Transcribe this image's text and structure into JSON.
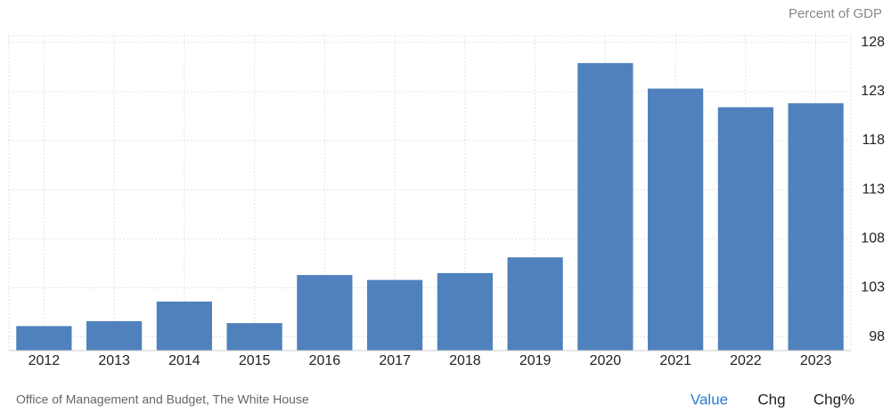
{
  "chart_data": {
    "type": "bar",
    "y_axis_label": "Percent of GDP",
    "categories": [
      "2012",
      "2013",
      "2014",
      "2015",
      "2016",
      "2017",
      "2018",
      "2019",
      "2020",
      "2021",
      "2022",
      "2023"
    ],
    "values": [
      99.1,
      99.6,
      101.6,
      99.4,
      104.3,
      103.8,
      104.5,
      106.1,
      125.9,
      123.3,
      121.4,
      121.8
    ],
    "color": "#4f81bd",
    "ylim": [
      96.6,
      128.7
    ],
    "yticks": [
      98,
      103,
      108,
      113,
      118,
      123,
      128
    ],
    "grid": true,
    "source": "Office of Management and Budget, The White House"
  },
  "controls": [
    "Value",
    "Chg",
    "Chg%"
  ]
}
